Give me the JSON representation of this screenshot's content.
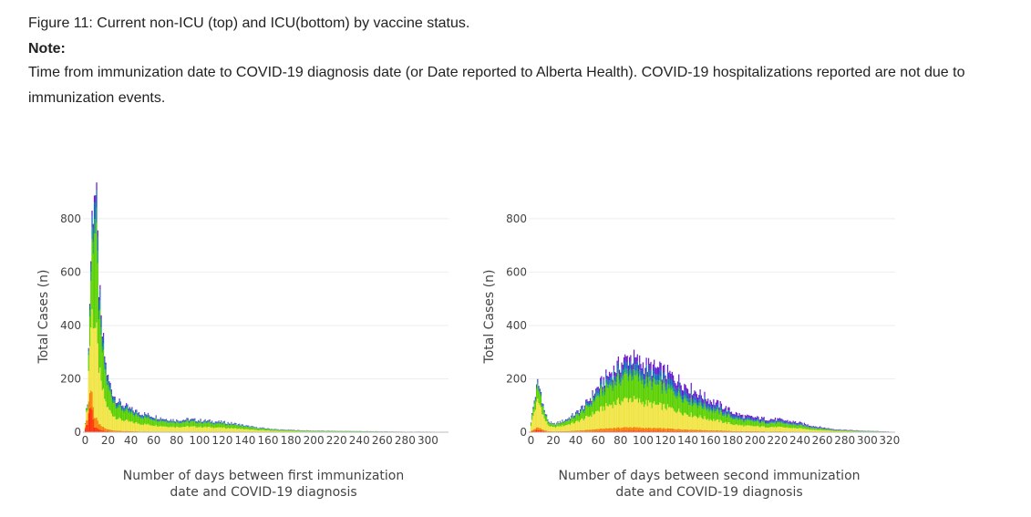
{
  "header": {
    "figure_title": "Figure 11: Current non-ICU (top) and ICU(bottom) by vaccine status.",
    "note_label": "Note:",
    "note_text": "Time from immunization date to COVID-19 diagnosis date (or Date reported to Alberta Health). COVID-19 hospitalizations reported are not due to immunization events."
  },
  "colors": {
    "layers": [
      "#ff2a00",
      "#f77f00",
      "#f0e442",
      "#5ad000",
      "#1e9e7a",
      "#1565c0",
      "#6a1bd0"
    ],
    "grid": "#eeeeee"
  },
  "chart_data": [
    {
      "type": "bar",
      "stacked": true,
      "ylabel": "Total Cases (n)",
      "xlabel_lines": [
        "Number of days between first immunization",
        "date and COVID-19 diagnosis"
      ],
      "ylim": [
        0,
        950
      ],
      "xlim": [
        -2,
        318
      ],
      "yticks": [
        0,
        200,
        400,
        600,
        800
      ],
      "xtick_labels": [
        "0",
        "20",
        "40",
        "60",
        "80",
        "100",
        "120",
        "140",
        "160",
        "180",
        "200",
        "220",
        "240",
        "260",
        "280",
        "300"
      ],
      "xtick_values": [
        0,
        20,
        40,
        60,
        80,
        100,
        120,
        140,
        160,
        180,
        200,
        220,
        240,
        260,
        280,
        300
      ],
      "grid": true,
      "total_profile": [
        [
          0,
          40
        ],
        [
          2,
          120
        ],
        [
          4,
          500
        ],
        [
          6,
          800
        ],
        [
          8,
          935
        ],
        [
          10,
          820
        ],
        [
          12,
          560
        ],
        [
          14,
          400
        ],
        [
          16,
          330
        ],
        [
          18,
          250
        ],
        [
          20,
          200
        ],
        [
          25,
          140
        ],
        [
          30,
          110
        ],
        [
          40,
          85
        ],
        [
          50,
          70
        ],
        [
          60,
          60
        ],
        [
          70,
          50
        ],
        [
          80,
          45
        ],
        [
          90,
          48
        ],
        [
          100,
          45
        ],
        [
          110,
          42
        ],
        [
          120,
          38
        ],
        [
          130,
          33
        ],
        [
          140,
          25
        ],
        [
          150,
          18
        ],
        [
          160,
          14
        ],
        [
          170,
          10
        ],
        [
          180,
          9
        ],
        [
          190,
          7
        ],
        [
          200,
          6
        ],
        [
          220,
          5
        ],
        [
          240,
          4
        ],
        [
          260,
          3
        ],
        [
          280,
          2
        ],
        [
          300,
          2
        ],
        [
          318,
          1
        ]
      ],
      "layer_shares": [
        [
          0,
          0.35
        ],
        [
          0,
          0.2
        ],
        [
          0,
          0.35
        ],
        [
          0,
          0.06
        ],
        [
          0,
          0.04
        ]
      ],
      "layer_shares_profile": [
        {
          "x": 0,
          "shares": [
            0.35,
            0.2,
            0.35,
            0.06,
            0.04,
            0.0,
            0.0
          ]
        },
        {
          "x": 8,
          "shares": [
            0.02,
            0.04,
            0.38,
            0.4,
            0.06,
            0.07,
            0.03
          ]
        },
        {
          "x": 40,
          "shares": [
            0.01,
            0.03,
            0.4,
            0.36,
            0.08,
            0.08,
            0.04
          ]
        },
        {
          "x": 318,
          "shares": [
            0.01,
            0.03,
            0.4,
            0.36,
            0.08,
            0.08,
            0.04
          ]
        }
      ]
    },
    {
      "type": "bar",
      "stacked": true,
      "ylabel": "Total Cases (n)",
      "xlabel_lines": [
        "Number of days between second immunization",
        "date and COVID-19 diagnosis"
      ],
      "ylim": [
        0,
        950
      ],
      "xlim": [
        -2,
        325
      ],
      "yticks": [
        0,
        200,
        400,
        600,
        800
      ],
      "xtick_labels": [
        "0",
        "20",
        "40",
        "60",
        "80",
        "100",
        "120",
        "140",
        "160",
        "180",
        "200",
        "220",
        "240",
        "260",
        "280",
        "300",
        "320"
      ],
      "xtick_values": [
        0,
        20,
        40,
        60,
        80,
        100,
        120,
        140,
        160,
        180,
        200,
        220,
        240,
        260,
        280,
        300,
        320
      ],
      "grid": true,
      "total_profile": [
        [
          0,
          40
        ],
        [
          3,
          120
        ],
        [
          6,
          185
        ],
        [
          9,
          150
        ],
        [
          12,
          80
        ],
        [
          16,
          40
        ],
        [
          20,
          30
        ],
        [
          30,
          45
        ],
        [
          40,
          70
        ],
        [
          50,
          110
        ],
        [
          60,
          170
        ],
        [
          70,
          220
        ],
        [
          80,
          255
        ],
        [
          88,
          285
        ],
        [
          95,
          265
        ],
        [
          100,
          255
        ],
        [
          110,
          240
        ],
        [
          120,
          225
        ],
        [
          130,
          200
        ],
        [
          140,
          170
        ],
        [
          150,
          145
        ],
        [
          160,
          120
        ],
        [
          170,
          100
        ],
        [
          180,
          75
        ],
        [
          190,
          60
        ],
        [
          200,
          55
        ],
        [
          210,
          50
        ],
        [
          220,
          48
        ],
        [
          230,
          42
        ],
        [
          240,
          35
        ],
        [
          250,
          25
        ],
        [
          260,
          18
        ],
        [
          270,
          12
        ],
        [
          280,
          9
        ],
        [
          290,
          7
        ],
        [
          300,
          5
        ],
        [
          310,
          4
        ],
        [
          320,
          2
        ],
        [
          325,
          1
        ]
      ],
      "layer_shares_profile": [
        {
          "x": 0,
          "shares": [
            0.05,
            0.05,
            0.55,
            0.25,
            0.04,
            0.04,
            0.02
          ]
        },
        {
          "x": 60,
          "shares": [
            0.02,
            0.05,
            0.4,
            0.33,
            0.06,
            0.08,
            0.06
          ]
        },
        {
          "x": 140,
          "shares": [
            0.02,
            0.04,
            0.34,
            0.3,
            0.07,
            0.1,
            0.13
          ]
        },
        {
          "x": 325,
          "shares": [
            0.02,
            0.04,
            0.34,
            0.3,
            0.07,
            0.1,
            0.13
          ]
        }
      ]
    }
  ]
}
